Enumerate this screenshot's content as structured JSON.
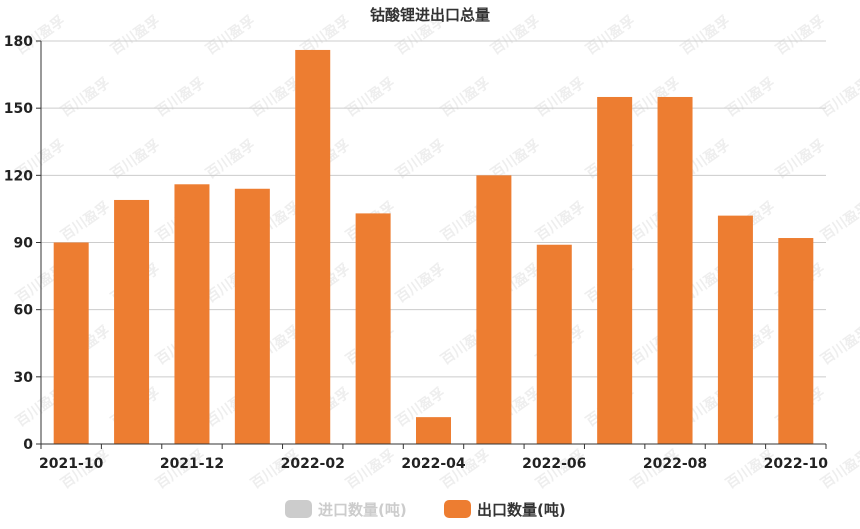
{
  "chart_data": {
    "type": "bar",
    "title": "钴酸锂进出口总量",
    "categories": [
      "2021-10",
      "2021-11",
      "2021-12",
      "2022-01",
      "2022-02",
      "2022-03",
      "2022-04",
      "2022-05",
      "2022-06",
      "2022-07",
      "2022-08",
      "2022-09",
      "2022-10"
    ],
    "x_tick_labels": [
      "2021-10",
      "",
      "2021-12",
      "",
      "2022-02",
      "",
      "2022-04",
      "",
      "2022-06",
      "",
      "2022-08",
      "",
      "2022-10"
    ],
    "series": [
      {
        "name": "进口数量(吨)",
        "values": [
          0,
          0,
          0,
          0,
          0,
          0,
          0,
          0,
          0,
          0,
          0,
          0,
          0
        ],
        "color": "#cccccc",
        "visible": false
      },
      {
        "name": "出口数量(吨)",
        "values": [
          90,
          109,
          116,
          114,
          176,
          103,
          12,
          120,
          89,
          155,
          155,
          102,
          92
        ],
        "color": "#ed7d31",
        "visible": true
      }
    ],
    "ylim": [
      0,
      180
    ],
    "yticks": [
      0,
      30,
      60,
      90,
      120,
      150,
      180
    ],
    "xlabel": "",
    "ylabel": "",
    "grid": true,
    "legend_position": "bottom"
  }
}
